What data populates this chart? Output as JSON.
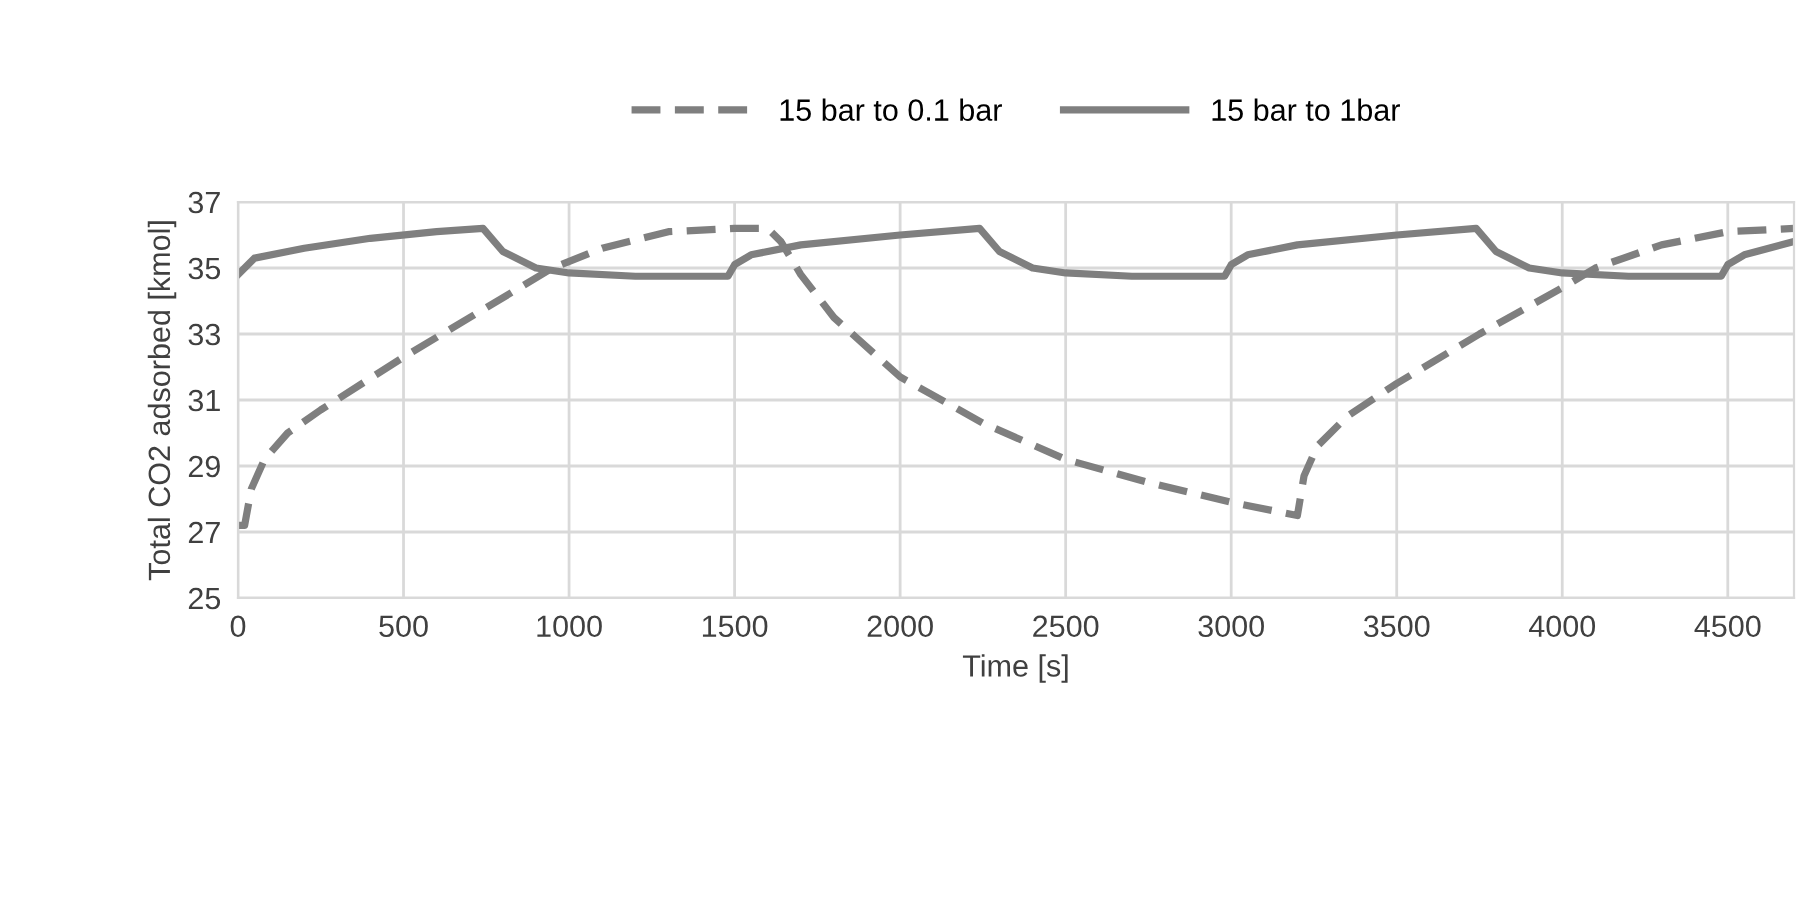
{
  "chart_data": {
    "type": "line",
    "xlabel": "Time [s]",
    "ylabel": "Total CO2 adsorbed [kmol]",
    "xlim": [
      0,
      4700
    ],
    "ylim": [
      25,
      37
    ],
    "xticks": [
      0,
      500,
      1000,
      1500,
      2000,
      2500,
      3000,
      3500,
      4000,
      4500
    ],
    "yticks": [
      25,
      27,
      29,
      31,
      33,
      35,
      37
    ],
    "grid": true,
    "legend": "top",
    "marker": "none",
    "series": [
      {
        "name": "15 bar to 0.1 bar",
        "color": "#7f7f7f",
        "line_style": "dashed",
        "x": [
          0,
          20,
          40,
          80,
          150,
          250,
          500,
          750,
          950,
          1100,
          1300,
          1500,
          1600,
          1640,
          1700,
          1800,
          2000,
          2250,
          2500,
          2750,
          3000,
          3200,
          3220,
          3260,
          3350,
          3500,
          3750,
          4000,
          4100,
          4300,
          4500,
          4700
        ],
        "values": [
          27.2,
          27.2,
          28.3,
          29.2,
          30.0,
          30.7,
          32.3,
          33.8,
          35.0,
          35.6,
          36.1,
          36.2,
          36.2,
          35.8,
          34.8,
          33.5,
          31.7,
          30.3,
          29.2,
          28.5,
          27.9,
          27.5,
          28.7,
          29.6,
          30.5,
          31.5,
          33.0,
          34.4,
          35.0,
          35.7,
          36.1,
          36.2
        ]
      },
      {
        "name": "15 bar to 1bar",
        "color": "#7f7f7f",
        "line_style": "solid",
        "x": [
          0,
          50,
          200,
          400,
          600,
          740,
          800,
          900,
          1000,
          1200,
          1480,
          1500,
          1550,
          1700,
          2000,
          2240,
          2300,
          2400,
          2500,
          2700,
          2980,
          3000,
          3050,
          3200,
          3500,
          3740,
          3800,
          3900,
          4000,
          4200,
          4480,
          4500,
          4550,
          4700
        ],
        "values": [
          34.8,
          35.3,
          35.6,
          35.9,
          36.1,
          36.2,
          35.5,
          35.0,
          34.85,
          34.75,
          34.75,
          35.1,
          35.4,
          35.7,
          36.0,
          36.2,
          35.5,
          35.0,
          34.85,
          34.75,
          34.75,
          35.1,
          35.4,
          35.7,
          36.0,
          36.2,
          35.5,
          35.0,
          34.85,
          34.75,
          34.75,
          35.1,
          35.4,
          35.8
        ]
      }
    ]
  }
}
